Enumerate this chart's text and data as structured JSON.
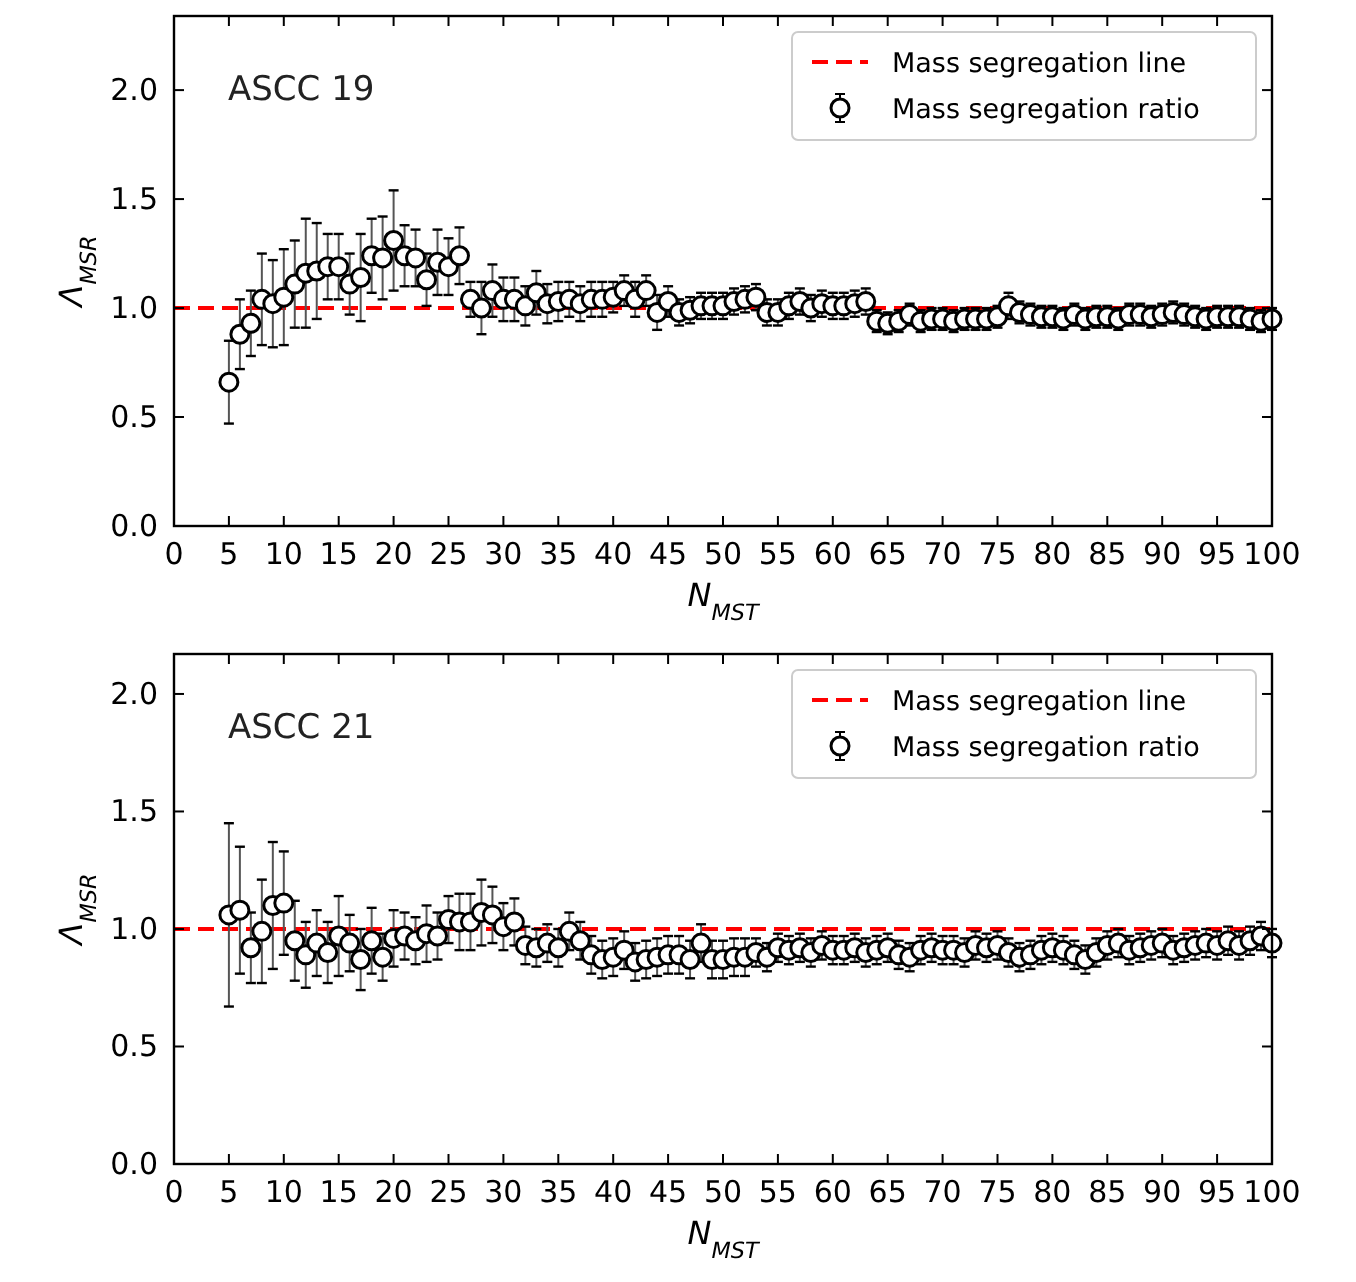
{
  "chart_data": [
    {
      "type": "scatter",
      "annotations": [
        "ASCC 19"
      ],
      "xlabel": "N$_{MST}$",
      "ylabel": "Λ$_{MSR}$",
      "xlim": [
        0,
        100
      ],
      "xticks": [
        0,
        5,
        10,
        15,
        20,
        25,
        30,
        35,
        40,
        45,
        50,
        55,
        60,
        65,
        70,
        75,
        80,
        85,
        90,
        95,
        100
      ],
      "ylim": [
        0,
        2.34
      ],
      "yticks": [
        {
          "value": 0,
          "label": "0.0"
        },
        {
          "value": 0.5,
          "label": "0.5"
        },
        {
          "value": 1,
          "label": "1.0"
        },
        {
          "value": 1.5,
          "label": "1.5"
        },
        {
          "value": 2,
          "label": "2.0"
        }
      ],
      "legend": "top right",
      "marker": "circle",
      "grid": false,
      "ref_lines": [
        {
          "axis": "y",
          "value": 1,
          "label": "Mass segregation line",
          "color": "#ff0000",
          "line_style": "dashed"
        }
      ],
      "series": [
        {
          "name": "Mass segregation ratio",
          "color": "#000000",
          "x": [
            5,
            6,
            7,
            8,
            9,
            10,
            11,
            12,
            13,
            14,
            15,
            16,
            17,
            18,
            19,
            20,
            21,
            22,
            23,
            24,
            25,
            26,
            27,
            28,
            29,
            30,
            31,
            32,
            33,
            34,
            35,
            36,
            37,
            38,
            39,
            40,
            41,
            42,
            43,
            44,
            45,
            46,
            47,
            48,
            49,
            50,
            51,
            52,
            53,
            54,
            55,
            56,
            57,
            58,
            59,
            60,
            61,
            62,
            63,
            64,
            65,
            66,
            67,
            68,
            69,
            70,
            71,
            72,
            73,
            74,
            75,
            76,
            77,
            78,
            79,
            80,
            81,
            82,
            83,
            84,
            85,
            86,
            87,
            88,
            89,
            90,
            91,
            92,
            93,
            94,
            95,
            96,
            97,
            98,
            99,
            100
          ],
          "values": [
            0.66,
            0.88,
            0.93,
            1.04,
            1.02,
            1.05,
            1.11,
            1.16,
            1.17,
            1.19,
            1.19,
            1.11,
            1.14,
            1.24,
            1.23,
            1.31,
            1.24,
            1.23,
            1.13,
            1.21,
            1.19,
            1.24,
            1.04,
            1.0,
            1.08,
            1.04,
            1.04,
            1.01,
            1.07,
            1.02,
            1.03,
            1.04,
            1.02,
            1.04,
            1.04,
            1.05,
            1.08,
            1.04,
            1.08,
            0.98,
            1.03,
            0.98,
            0.99,
            1.01,
            1.01,
            1.01,
            1.03,
            1.04,
            1.05,
            0.98,
            0.98,
            1.01,
            1.03,
            1.0,
            1.02,
            1.01,
            1.01,
            1.02,
            1.03,
            0.94,
            0.93,
            0.94,
            0.97,
            0.94,
            0.95,
            0.95,
            0.94,
            0.95,
            0.95,
            0.95,
            0.96,
            1.01,
            0.98,
            0.97,
            0.96,
            0.96,
            0.95,
            0.97,
            0.95,
            0.96,
            0.96,
            0.95,
            0.97,
            0.97,
            0.96,
            0.97,
            0.98,
            0.97,
            0.96,
            0.95,
            0.96,
            0.96,
            0.96,
            0.95,
            0.94,
            0.95
          ],
          "errors": [
            0.19,
            0.16,
            0.15,
            0.21,
            0.2,
            0.22,
            0.2,
            0.25,
            0.22,
            0.15,
            0.15,
            0.14,
            0.2,
            0.17,
            0.19,
            0.23,
            0.14,
            0.13,
            0.12,
            0.15,
            0.13,
            0.13,
            0.08,
            0.12,
            0.12,
            0.1,
            0.1,
            0.09,
            0.1,
            0.09,
            0.09,
            0.08,
            0.08,
            0.08,
            0.08,
            0.07,
            0.07,
            0.08,
            0.07,
            0.08,
            0.07,
            0.06,
            0.06,
            0.06,
            0.06,
            0.06,
            0.06,
            0.06,
            0.06,
            0.06,
            0.06,
            0.06,
            0.06,
            0.06,
            0.06,
            0.06,
            0.06,
            0.06,
            0.06,
            0.05,
            0.05,
            0.05,
            0.05,
            0.05,
            0.05,
            0.05,
            0.05,
            0.05,
            0.05,
            0.05,
            0.05,
            0.06,
            0.05,
            0.05,
            0.05,
            0.05,
            0.05,
            0.05,
            0.05,
            0.05,
            0.05,
            0.05,
            0.05,
            0.05,
            0.05,
            0.05,
            0.05,
            0.05,
            0.05,
            0.05,
            0.05,
            0.05,
            0.05,
            0.05,
            0.05,
            0.05
          ]
        }
      ]
    },
    {
      "type": "scatter",
      "annotations": [
        "ASCC 21"
      ],
      "xlabel": "N$_{MST}$",
      "ylabel": "Λ$_{MSR}$",
      "xlim": [
        0,
        100
      ],
      "xticks": [
        0,
        5,
        10,
        15,
        20,
        25,
        30,
        35,
        40,
        45,
        50,
        55,
        60,
        65,
        70,
        75,
        80,
        85,
        90,
        95,
        100
      ],
      "ylim": [
        0,
        2.17
      ],
      "yticks": [
        {
          "value": 0,
          "label": "0.0"
        },
        {
          "value": 0.5,
          "label": "0.5"
        },
        {
          "value": 1,
          "label": "1.0"
        },
        {
          "value": 1.5,
          "label": "1.5"
        },
        {
          "value": 2,
          "label": "2.0"
        }
      ],
      "legend": "top right",
      "marker": "circle",
      "grid": false,
      "ref_lines": [
        {
          "axis": "y",
          "value": 1,
          "label": "Mass segregation line",
          "color": "#ff0000",
          "line_style": "dashed"
        }
      ],
      "series": [
        {
          "name": "Mass segregation ratio",
          "color": "#000000",
          "x": [
            5,
            6,
            7,
            8,
            9,
            10,
            11,
            12,
            13,
            14,
            15,
            16,
            17,
            18,
            19,
            20,
            21,
            22,
            23,
            24,
            25,
            26,
            27,
            28,
            29,
            30,
            31,
            32,
            33,
            34,
            35,
            36,
            37,
            38,
            39,
            40,
            41,
            42,
            43,
            44,
            45,
            46,
            47,
            48,
            49,
            50,
            51,
            52,
            53,
            54,
            55,
            56,
            57,
            58,
            59,
            60,
            61,
            62,
            63,
            64,
            65,
            66,
            67,
            68,
            69,
            70,
            71,
            72,
            73,
            74,
            75,
            76,
            77,
            78,
            79,
            80,
            81,
            82,
            83,
            84,
            85,
            86,
            87,
            88,
            89,
            90,
            91,
            92,
            93,
            94,
            95,
            96,
            97,
            98,
            99,
            100
          ],
          "values": [
            1.06,
            1.08,
            0.92,
            0.99,
            1.1,
            1.11,
            0.95,
            0.89,
            0.94,
            0.9,
            0.97,
            0.94,
            0.87,
            0.95,
            0.88,
            0.96,
            0.97,
            0.95,
            0.98,
            0.97,
            1.04,
            1.03,
            1.03,
            1.07,
            1.06,
            1.01,
            1.03,
            0.93,
            0.92,
            0.94,
            0.92,
            0.99,
            0.95,
            0.89,
            0.87,
            0.88,
            0.91,
            0.86,
            0.87,
            0.88,
            0.89,
            0.89,
            0.87,
            0.94,
            0.87,
            0.87,
            0.88,
            0.88,
            0.9,
            0.88,
            0.92,
            0.91,
            0.92,
            0.9,
            0.93,
            0.91,
            0.91,
            0.92,
            0.9,
            0.91,
            0.92,
            0.89,
            0.88,
            0.91,
            0.92,
            0.91,
            0.91,
            0.9,
            0.93,
            0.92,
            0.93,
            0.9,
            0.88,
            0.89,
            0.91,
            0.92,
            0.91,
            0.89,
            0.87,
            0.9,
            0.93,
            0.94,
            0.91,
            0.92,
            0.93,
            0.94,
            0.91,
            0.92,
            0.93,
            0.94,
            0.93,
            0.95,
            0.93,
            0.95,
            0.97,
            0.94
          ],
          "errors": [
            0.39,
            0.27,
            0.15,
            0.22,
            0.27,
            0.22,
            0.17,
            0.14,
            0.14,
            0.13,
            0.17,
            0.12,
            0.13,
            0.14,
            0.1,
            0.12,
            0.1,
            0.1,
            0.12,
            0.1,
            0.1,
            0.12,
            0.12,
            0.14,
            0.12,
            0.1,
            0.1,
            0.08,
            0.08,
            0.08,
            0.08,
            0.08,
            0.08,
            0.08,
            0.08,
            0.08,
            0.08,
            0.08,
            0.08,
            0.08,
            0.08,
            0.08,
            0.08,
            0.08,
            0.08,
            0.08,
            0.08,
            0.08,
            0.06,
            0.06,
            0.06,
            0.06,
            0.06,
            0.06,
            0.06,
            0.06,
            0.06,
            0.06,
            0.06,
            0.06,
            0.06,
            0.06,
            0.06,
            0.06,
            0.06,
            0.06,
            0.06,
            0.06,
            0.06,
            0.06,
            0.06,
            0.06,
            0.06,
            0.06,
            0.06,
            0.06,
            0.06,
            0.06,
            0.06,
            0.06,
            0.06,
            0.06,
            0.06,
            0.06,
            0.06,
            0.06,
            0.06,
            0.06,
            0.06,
            0.06,
            0.06,
            0.06,
            0.06,
            0.06,
            0.06,
            0.06
          ]
        }
      ]
    }
  ]
}
